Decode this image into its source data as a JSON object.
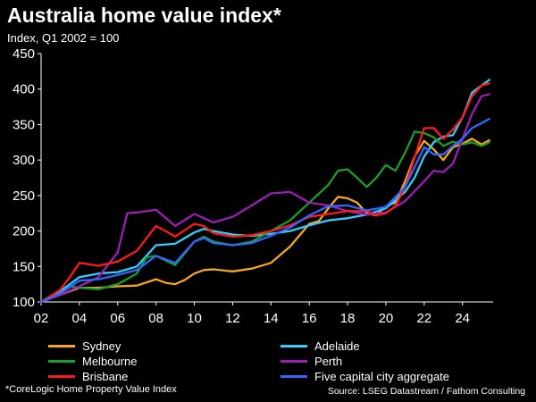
{
  "title": "Australia home value index*",
  "subtitle": "Index, Q1 2002 = 100",
  "footnote": "*CoreLogic Home Property Value Index",
  "source": "Source: LSEG Datastream / Fathom Consulting",
  "chart_data": {
    "type": "line",
    "xlim": [
      2002,
      2025.6
    ],
    "ylim": [
      100,
      450
    ],
    "x_ticks": [
      2002,
      2004,
      2006,
      2008,
      2010,
      2012,
      2014,
      2016,
      2018,
      2020,
      2022,
      2024
    ],
    "x_tick_labels": [
      "02",
      "04",
      "06",
      "08",
      "10",
      "12",
      "14",
      "16",
      "18",
      "20",
      "22",
      "24"
    ],
    "y_ticks": [
      100,
      150,
      200,
      250,
      300,
      350,
      400,
      450
    ],
    "grid": false,
    "legend_position": "bottom",
    "series": [
      {
        "name": "Sydney",
        "color": "#f5a623",
        "x": [
          2002,
          2003,
          2004,
          2005,
          2006,
          2007,
          2008,
          2008.5,
          2009,
          2009.5,
          2010,
          2010.5,
          2011,
          2012,
          2013,
          2014,
          2015,
          2016,
          2016.5,
          2017,
          2017.5,
          2018,
          2018.5,
          2019,
          2019.5,
          2020,
          2020.5,
          2021,
          2021.5,
          2022,
          2022.5,
          2023,
          2023.5,
          2024,
          2024.5,
          2025,
          2025.4
        ],
        "y": [
          100,
          110,
          120,
          120,
          122,
          123,
          132,
          127,
          125,
          131,
          140,
          145,
          146,
          143,
          147,
          155,
          178,
          210,
          214,
          232,
          248,
          246,
          240,
          225,
          222,
          235,
          240,
          270,
          305,
          327,
          315,
          300,
          318,
          323,
          330,
          322,
          328
        ]
      },
      {
        "name": "Adelaide",
        "color": "#33ccff",
        "x": [
          2002,
          2003,
          2004,
          2005,
          2006,
          2007,
          2008,
          2009,
          2010,
          2010.5,
          2011,
          2012,
          2013,
          2014,
          2015,
          2016,
          2017,
          2018,
          2019,
          2020,
          2021,
          2021.5,
          2022,
          2022.5,
          2023,
          2023.5,
          2024,
          2024.5,
          2025,
          2025.4
        ],
        "y": [
          100,
          115,
          135,
          140,
          142,
          150,
          180,
          182,
          198,
          203,
          200,
          195,
          193,
          196,
          200,
          208,
          215,
          218,
          223,
          232,
          255,
          275,
          305,
          325,
          333,
          335,
          360,
          395,
          405,
          413
        ]
      },
      {
        "name": "Melbourne",
        "color": "#1a9e2a",
        "x": [
          2002,
          2003,
          2003.5,
          2004,
          2005,
          2006,
          2007,
          2007.5,
          2008,
          2009,
          2010,
          2010.5,
          2011,
          2012,
          2013,
          2014,
          2015,
          2016,
          2017,
          2017.5,
          2018,
          2018.5,
          2019,
          2019.5,
          2020,
          2020.5,
          2021,
          2021.5,
          2022,
          2022.5,
          2023,
          2023.5,
          2024,
          2024.5,
          2025,
          2025.4
        ],
        "y": [
          100,
          112,
          122,
          120,
          118,
          125,
          140,
          163,
          165,
          152,
          185,
          192,
          185,
          180,
          185,
          200,
          215,
          240,
          265,
          285,
          287,
          275,
          262,
          275,
          293,
          285,
          310,
          340,
          338,
          332,
          320,
          326,
          322,
          325,
          320,
          325
        ]
      },
      {
        "name": "Perth",
        "color": "#9c1fb5",
        "x": [
          2002,
          2003,
          2004,
          2005,
          2006,
          2006.5,
          2007,
          2008,
          2009,
          2010,
          2011,
          2012,
          2013,
          2014,
          2015,
          2016,
          2017,
          2018,
          2019,
          2020,
          2021,
          2022,
          2022.5,
          2023,
          2023.5,
          2024,
          2024.5,
          2025,
          2025.4
        ],
        "y": [
          100,
          110,
          122,
          135,
          170,
          225,
          226,
          230,
          207,
          224,
          212,
          220,
          236,
          253,
          255,
          240,
          236,
          228,
          223,
          226,
          242,
          270,
          285,
          283,
          295,
          330,
          365,
          390,
          393
        ]
      },
      {
        "name": "Brisbane",
        "color": "#ff1a1a",
        "x": [
          2002,
          2003,
          2003.5,
          2004,
          2005,
          2006,
          2007,
          2008,
          2008.5,
          2009,
          2010,
          2010.5,
          2011,
          2012,
          2013,
          2014,
          2015,
          2016,
          2017,
          2018,
          2019,
          2019.5,
          2020,
          2020.5,
          2021,
          2022,
          2022.5,
          2023,
          2023.5,
          2024,
          2024.5,
          2025,
          2025.4
        ],
        "y": [
          100,
          117,
          135,
          155,
          151,
          157,
          172,
          207,
          200,
          192,
          210,
          207,
          197,
          192,
          194,
          200,
          208,
          220,
          224,
          228,
          228,
          222,
          225,
          235,
          262,
          345,
          345,
          330,
          343,
          360,
          390,
          405,
          408
        ]
      },
      {
        "name": "Five capital city aggregate",
        "color": "#3366ff",
        "x": [
          2002,
          2003,
          2004,
          2005,
          2006,
          2007,
          2008,
          2008.5,
          2009,
          2010,
          2010.5,
          2011,
          2012,
          2013,
          2014,
          2015,
          2016,
          2017,
          2018,
          2019,
          2020,
          2021,
          2022,
          2022.5,
          2023,
          2023.5,
          2024,
          2024.5,
          2025,
          2025.4
        ],
        "y": [
          100,
          112,
          130,
          132,
          138,
          145,
          165,
          160,
          155,
          185,
          190,
          183,
          180,
          183,
          193,
          205,
          222,
          235,
          236,
          229,
          234,
          262,
          318,
          308,
          308,
          320,
          330,
          345,
          352,
          358
        ]
      }
    ]
  }
}
